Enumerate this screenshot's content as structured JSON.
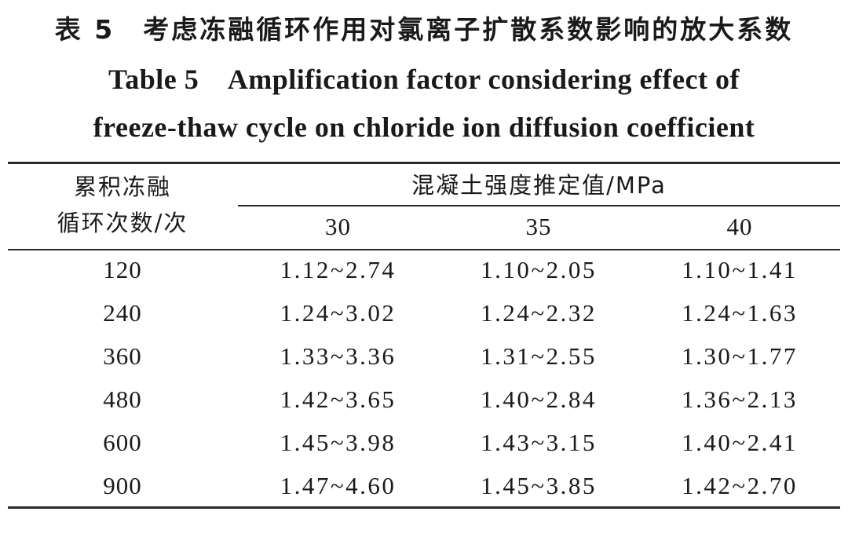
{
  "title": {
    "cn": "表 5　考虑冻融循环作用对氯离子扩散系数影响的放大系数",
    "en_line1": "Table 5　Amplification factor considering effect of",
    "en_line2": "freeze-thaw cycle on chloride ion diffusion coefficient"
  },
  "table": {
    "stub_header_line1": "累积冻融",
    "stub_header_line2": "循环次数/次",
    "spanner_header": "混凝土强度推定值/MPa",
    "columns": [
      "30",
      "35",
      "40"
    ],
    "rows": [
      {
        "cycles": "120",
        "values": [
          "1.12~2.74",
          "1.10~2.05",
          "1.10~1.41"
        ]
      },
      {
        "cycles": "240",
        "values": [
          "1.24~3.02",
          "1.24~2.32",
          "1.24~1.63"
        ]
      },
      {
        "cycles": "360",
        "values": [
          "1.33~3.36",
          "1.31~2.55",
          "1.30~1.77"
        ]
      },
      {
        "cycles": "480",
        "values": [
          "1.42~3.65",
          "1.40~2.84",
          "1.36~2.13"
        ]
      },
      {
        "cycles": "600",
        "values": [
          "1.45~3.98",
          "1.43~3.15",
          "1.40~2.41"
        ]
      },
      {
        "cycles": "900",
        "values": [
          "1.47~4.60",
          "1.45~3.85",
          "1.42~2.70"
        ]
      }
    ]
  }
}
